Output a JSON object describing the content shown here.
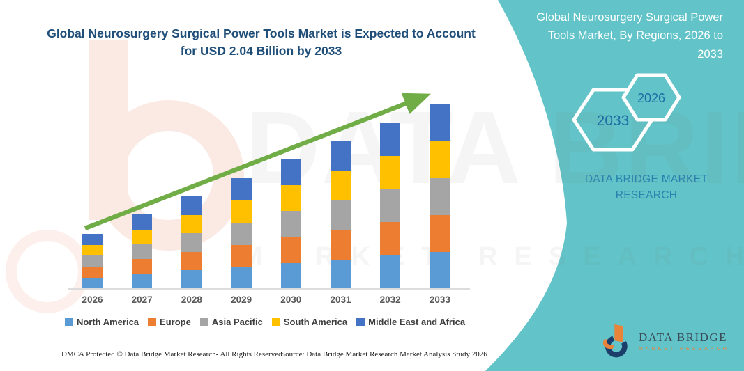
{
  "title": "Global Neurosurgery Surgical Power Tools Market is Expected to Account for USD 2.04 Billion by 2033",
  "side_panel": {
    "title": "Global Neurosurgery Surgical Power Tools Market, By Regions, 2026 to 2033",
    "hexagons": [
      {
        "label": "2033"
      },
      {
        "label": "2026"
      }
    ],
    "brand_text": "DATA BRIDGE MARKET RESEARCH",
    "background_color": "#62c4c8",
    "year_text_color": "#1e6ea6"
  },
  "watermark": {
    "line1": "DATA BRIDGE",
    "line2": "MARKET RESEARCH"
  },
  "chart_data": {
    "type": "bar",
    "stacked": true,
    "title": "Global Neurosurgery Surgical Power Tools Market is Expected to Account for USD 2.04 Billion by 2033",
    "unit": "USD Billion",
    "categories": [
      "2026",
      "2027",
      "2028",
      "2029",
      "2030",
      "2031",
      "2032",
      "2033"
    ],
    "series": [
      {
        "name": "North America",
        "color": "#5B9BD5",
        "values": [
          0.122,
          0.164,
          0.204,
          0.244,
          0.286,
          0.326,
          0.368,
          0.408
        ]
      },
      {
        "name": "Europe",
        "color": "#ED7D31",
        "values": [
          0.122,
          0.164,
          0.204,
          0.244,
          0.286,
          0.326,
          0.368,
          0.408
        ]
      },
      {
        "name": "Asia Pacific",
        "color": "#A5A5A5",
        "values": [
          0.122,
          0.164,
          0.204,
          0.244,
          0.286,
          0.326,
          0.368,
          0.408
        ]
      },
      {
        "name": "South America",
        "color": "#FFC000",
        "values": [
          0.122,
          0.164,
          0.204,
          0.244,
          0.286,
          0.326,
          0.368,
          0.408
        ]
      },
      {
        "name": "Middle East and Africa",
        "color": "#4472C4",
        "values": [
          0.122,
          0.164,
          0.204,
          0.244,
          0.286,
          0.326,
          0.368,
          0.408
        ]
      }
    ],
    "totals": [
      0.61,
      0.82,
      1.02,
      1.22,
      1.43,
      1.63,
      1.84,
      2.04
    ],
    "ylim": [
      0,
      2.2
    ],
    "grid": false,
    "legend_position": "bottom",
    "annotation": "green upward trend arrow from 2026 bar to 2033 bar",
    "trend_arrow_color": "#70AD47"
  },
  "footer": {
    "dmca": "DMCA Protected © Data Bridge Market Research-  All Rights Reserved.",
    "source": "Source: Data Bridge Market Research  Market Analysis Study 2026"
  },
  "logo": {
    "name": "DATA BRIDGE",
    "tagline": "MARKET RESEARCH"
  }
}
